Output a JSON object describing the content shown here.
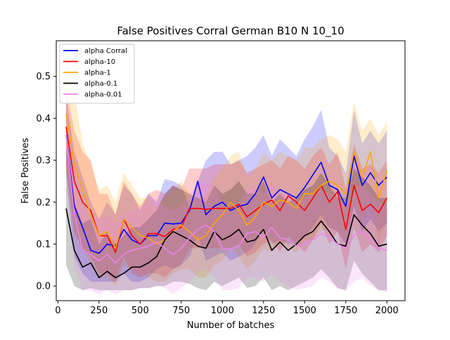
{
  "chart_data": {
    "type": "line",
    "title": "False Positives Corral German B10 N 10_10",
    "xlabel": "Number of batches",
    "ylabel": "False Positives",
    "xlim": [
      -10,
      2110
    ],
    "ylim": [
      -0.035,
      0.585
    ],
    "xticks": [
      0,
      250,
      500,
      750,
      1000,
      1250,
      1500,
      1750,
      2000
    ],
    "xtick_labels": [
      "0",
      "250",
      "500",
      "750",
      "1000",
      "1250",
      "1500",
      "1750",
      "2000"
    ],
    "yticks": [
      0.0,
      0.1,
      0.2,
      0.3,
      0.4,
      0.5
    ],
    "ytick_labels": [
      "0.0",
      "0.1",
      "0.2",
      "0.3",
      "0.4",
      "0.5"
    ],
    "legend_position": "top-left",
    "grid": false,
    "x": [
      50,
      100,
      150,
      200,
      250,
      300,
      350,
      400,
      450,
      500,
      550,
      600,
      650,
      700,
      750,
      800,
      850,
      900,
      950,
      1000,
      1050,
      1100,
      1150,
      1200,
      1250,
      1300,
      1350,
      1400,
      1450,
      1500,
      1550,
      1600,
      1650,
      1700,
      1750,
      1800,
      1850,
      1900,
      1950,
      2000
    ],
    "series": [
      {
        "name": "alpha Corral",
        "color": "#0000ff",
        "values": [
          0.36,
          0.19,
          0.14,
          0.085,
          0.078,
          0.1,
          0.095,
          0.135,
          0.11,
          0.1,
          0.12,
          0.12,
          0.15,
          0.148,
          0.15,
          0.18,
          0.25,
          0.17,
          0.19,
          0.2,
          0.18,
          0.19,
          0.195,
          0.22,
          0.26,
          0.21,
          0.23,
          0.22,
          0.21,
          0.235,
          0.265,
          0.295,
          0.24,
          0.23,
          0.19,
          0.31,
          0.24,
          0.27,
          0.24,
          0.26
        ],
        "upper": [
          0.45,
          0.32,
          0.26,
          0.2,
          0.16,
          0.2,
          0.17,
          0.24,
          0.22,
          0.18,
          0.22,
          0.2,
          0.255,
          0.25,
          0.24,
          0.19,
          0.25,
          0.3,
          0.32,
          0.32,
          0.29,
          0.3,
          0.31,
          0.33,
          0.36,
          0.31,
          0.35,
          0.33,
          0.31,
          0.35,
          0.38,
          0.42,
          0.33,
          0.31,
          0.27,
          0.42,
          0.34,
          0.37,
          0.34,
          0.37
        ],
        "lower": [
          0.27,
          0.07,
          0.03,
          0.01,
          0.01,
          0.01,
          0.01,
          0.03,
          0.01,
          0.01,
          0.02,
          0.04,
          0.05,
          0.04,
          0.05,
          0.07,
          0.12,
          0.06,
          0.07,
          0.08,
          0.06,
          0.07,
          0.08,
          0.1,
          0.14,
          0.1,
          0.11,
          0.1,
          0.1,
          0.12,
          0.14,
          0.17,
          0.14,
          0.13,
          0.1,
          0.19,
          0.13,
          0.16,
          0.13,
          0.15
        ]
      },
      {
        "name": "alpha-10",
        "color": "#ff0000",
        "values": [
          0.38,
          0.25,
          0.2,
          0.18,
          0.12,
          0.12,
          0.08,
          0.16,
          0.12,
          0.1,
          0.125,
          0.125,
          0.118,
          0.135,
          0.14,
          0.185,
          0.185,
          0.183,
          0.185,
          0.185,
          0.185,
          0.195,
          0.165,
          0.18,
          0.195,
          0.205,
          0.18,
          0.215,
          0.2,
          0.18,
          0.21,
          0.24,
          0.2,
          0.225,
          0.135,
          0.24,
          0.18,
          0.195,
          0.175,
          0.21
        ],
        "upper": [
          0.47,
          0.37,
          0.32,
          0.3,
          0.22,
          0.22,
          0.17,
          0.25,
          0.22,
          0.19,
          0.22,
          0.23,
          0.22,
          0.24,
          0.23,
          0.28,
          0.28,
          0.28,
          0.29,
          0.29,
          0.29,
          0.3,
          0.27,
          0.28,
          0.29,
          0.3,
          0.28,
          0.31,
          0.3,
          0.28,
          0.31,
          0.33,
          0.29,
          0.32,
          0.23,
          0.34,
          0.28,
          0.29,
          0.27,
          0.3
        ],
        "lower": [
          0.29,
          0.13,
          0.09,
          0.07,
          0.03,
          0.03,
          0.01,
          0.07,
          0.03,
          0.02,
          0.03,
          0.03,
          0.02,
          0.04,
          0.05,
          0.09,
          0.09,
          0.09,
          0.09,
          0.09,
          0.09,
          0.1,
          0.07,
          0.08,
          0.1,
          0.11,
          0.08,
          0.12,
          0.1,
          0.08,
          0.11,
          0.15,
          0.1,
          0.13,
          0.04,
          0.14,
          0.08,
          0.1,
          0.08,
          0.12
        ]
      },
      {
        "name": "alpha-1",
        "color": "#ffa500",
        "values": [
          0.41,
          0.29,
          0.23,
          0.17,
          0.12,
          0.13,
          0.09,
          0.16,
          0.14,
          0.12,
          0.115,
          0.1,
          0.11,
          0.13,
          0.145,
          0.13,
          0.11,
          0.12,
          0.15,
          0.17,
          0.2,
          0.18,
          0.145,
          0.165,
          0.2,
          0.19,
          0.205,
          0.2,
          0.185,
          0.22,
          0.22,
          0.24,
          0.25,
          0.24,
          0.22,
          0.32,
          0.26,
          0.32,
          0.21,
          0.275
        ],
        "upper": [
          0.55,
          0.46,
          0.34,
          0.29,
          0.23,
          0.24,
          0.2,
          0.27,
          0.24,
          0.21,
          0.21,
          0.19,
          0.21,
          0.23,
          0.25,
          0.22,
          0.21,
          0.22,
          0.26,
          0.28,
          0.31,
          0.32,
          0.26,
          0.28,
          0.32,
          0.3,
          0.32,
          0.31,
          0.3,
          0.33,
          0.33,
          0.35,
          0.36,
          0.35,
          0.32,
          0.44,
          0.37,
          0.4,
          0.36,
          0.39
        ],
        "lower": [
          0.27,
          0.12,
          0.09,
          0.05,
          0.02,
          0.02,
          0.0,
          0.05,
          0.04,
          0.03,
          0.02,
          0.01,
          0.01,
          0.03,
          0.04,
          0.04,
          0.02,
          0.02,
          0.05,
          0.06,
          0.09,
          0.07,
          0.04,
          0.06,
          0.09,
          0.08,
          0.1,
          0.09,
          0.08,
          0.11,
          0.11,
          0.13,
          0.14,
          0.13,
          0.11,
          0.2,
          0.15,
          0.21,
          0.1,
          0.16
        ]
      },
      {
        "name": "alpha-0.1",
        "color": "#000000",
        "values": [
          0.185,
          0.085,
          0.045,
          0.055,
          0.02,
          0.035,
          0.02,
          0.03,
          0.045,
          0.045,
          0.055,
          0.07,
          0.11,
          0.13,
          0.12,
          0.11,
          0.095,
          0.09,
          0.13,
          0.11,
          0.12,
          0.135,
          0.105,
          0.11,
          0.135,
          0.085,
          0.105,
          0.085,
          0.1,
          0.12,
          0.13,
          0.155,
          0.13,
          0.1,
          0.095,
          0.17,
          0.145,
          0.125,
          0.095,
          0.1
        ],
        "upper": [
          0.33,
          0.2,
          0.15,
          0.16,
          0.1,
          0.13,
          0.1,
          0.12,
          0.14,
          0.14,
          0.16,
          0.18,
          0.22,
          0.24,
          0.23,
          0.22,
          0.21,
          0.2,
          0.24,
          0.22,
          0.23,
          0.25,
          0.22,
          0.22,
          0.25,
          0.2,
          0.22,
          0.2,
          0.21,
          0.23,
          0.24,
          0.27,
          0.24,
          0.21,
          0.21,
          0.28,
          0.26,
          0.24,
          0.21,
          0.21
        ],
        "lower": [
          0.05,
          0.0,
          -0.01,
          -0.005,
          -0.01,
          -0.01,
          -0.01,
          -0.01,
          -0.01,
          -0.005,
          -0.005,
          0.0,
          0.0,
          0.01,
          0.01,
          0.005,
          -0.005,
          -0.01,
          0.01,
          0.0,
          0.01,
          0.02,
          -0.005,
          0.0,
          0.02,
          -0.01,
          0.0,
          -0.01,
          0.0,
          0.01,
          0.02,
          0.04,
          0.02,
          -0.005,
          -0.01,
          0.06,
          0.03,
          0.01,
          -0.01,
          -0.01
        ]
      },
      {
        "name": "alpha-0.01",
        "color": "#ee82ee",
        "values": [
          0.36,
          0.17,
          0.085,
          0.075,
          0.06,
          0.075,
          0.055,
          0.075,
          0.085,
          0.09,
          0.095,
          0.105,
          0.09,
          0.075,
          0.09,
          0.115,
          0.135,
          0.145,
          0.13,
          0.09,
          0.088,
          0.095,
          0.125,
          0.13,
          0.115,
          0.14,
          0.115,
          0.11,
          0.095,
          0.1,
          0.11,
          0.125,
          0.115,
          0.1,
          0.09,
          0.12,
          0.13,
          0.11,
          0.09,
          0.085
        ],
        "upper": [
          0.47,
          0.29,
          0.2,
          0.18,
          0.16,
          0.17,
          0.15,
          0.17,
          0.18,
          0.19,
          0.2,
          0.21,
          0.19,
          0.18,
          0.19,
          0.22,
          0.24,
          0.25,
          0.24,
          0.2,
          0.19,
          0.2,
          0.23,
          0.24,
          0.22,
          0.25,
          0.22,
          0.22,
          0.2,
          0.21,
          0.22,
          0.23,
          0.22,
          0.21,
          0.2,
          0.23,
          0.24,
          0.22,
          0.2,
          0.19
        ],
        "lower": [
          0.25,
          0.05,
          -0.01,
          -0.01,
          -0.02,
          -0.01,
          -0.02,
          -0.01,
          -0.01,
          -0.005,
          -0.005,
          0.0,
          -0.005,
          -0.02,
          -0.005,
          0.01,
          0.03,
          0.04,
          0.02,
          -0.01,
          -0.01,
          -0.005,
          0.02,
          0.02,
          0.01,
          0.03,
          0.01,
          0.0,
          -0.01,
          -0.005,
          0.0,
          0.02,
          0.01,
          -0.005,
          -0.01,
          0.01,
          0.02,
          0.0,
          -0.01,
          -0.015
        ]
      }
    ]
  }
}
